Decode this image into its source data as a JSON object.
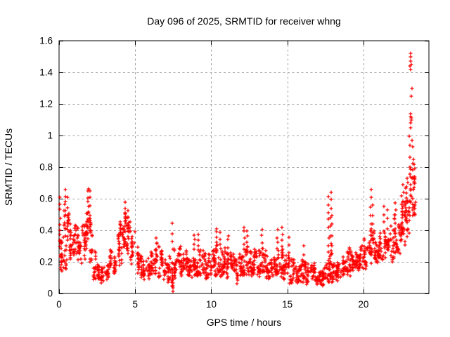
{
  "chart_data": {
    "type": "scatter",
    "title": "Day 096 of 2025, SRMTID for receiver whng",
    "xlabel": "GPS time / hours",
    "ylabel": "SRMTID / TECUs",
    "xlim": [
      0,
      24.3
    ],
    "ylim": [
      0,
      1.6
    ],
    "xticks": [
      0,
      5,
      10,
      15,
      20
    ],
    "yticks": [
      0,
      0.2,
      0.4,
      0.6,
      0.8,
      1,
      1.2,
      1.4,
      1.6
    ],
    "ytick_labels": [
      "0",
      "0.2",
      "0.4",
      "0.6",
      "0.8",
      "1",
      "1.2",
      "1.4",
      "1.6"
    ],
    "grid": true,
    "legend": "none",
    "marker": "plus",
    "marker_color": "#ff0000",
    "grid_color": "#a0a0a0",
    "series_name": "SRMTID",
    "bin_width": 0.25,
    "band_bins": [
      [
        0.0,
        0.08,
        0.48,
        22
      ],
      [
        0.25,
        0.15,
        0.58,
        22
      ],
      [
        0.5,
        0.2,
        0.6,
        22
      ],
      [
        0.75,
        0.22,
        0.5,
        20
      ],
      [
        1.0,
        0.25,
        0.45,
        20
      ],
      [
        1.25,
        0.15,
        0.38,
        20
      ],
      [
        1.5,
        0.18,
        0.45,
        20
      ],
      [
        1.75,
        0.22,
        0.58,
        22
      ],
      [
        2.0,
        0.18,
        0.55,
        20
      ],
      [
        2.25,
        0.08,
        0.28,
        20
      ],
      [
        2.5,
        0.05,
        0.2,
        20
      ],
      [
        2.75,
        0.05,
        0.18,
        20
      ],
      [
        3.0,
        0.07,
        0.2,
        20
      ],
      [
        3.25,
        0.1,
        0.28,
        20
      ],
      [
        3.5,
        0.12,
        0.32,
        20
      ],
      [
        3.75,
        0.15,
        0.38,
        20
      ],
      [
        4.0,
        0.18,
        0.48,
        22
      ],
      [
        4.25,
        0.25,
        0.55,
        24
      ],
      [
        4.5,
        0.2,
        0.5,
        22
      ],
      [
        4.75,
        0.15,
        0.4,
        20
      ],
      [
        5.0,
        0.12,
        0.3,
        20
      ],
      [
        5.25,
        0.1,
        0.25,
        20
      ],
      [
        5.5,
        0.07,
        0.22,
        20
      ],
      [
        5.75,
        0.08,
        0.24,
        20
      ],
      [
        6.0,
        0.1,
        0.28,
        20
      ],
      [
        6.25,
        0.12,
        0.32,
        20
      ],
      [
        6.5,
        0.1,
        0.3,
        20
      ],
      [
        6.75,
        0.08,
        0.25,
        20
      ],
      [
        7.0,
        0.05,
        0.22,
        20
      ],
      [
        7.25,
        0.03,
        0.25,
        20
      ],
      [
        7.5,
        0.05,
        0.28,
        20
      ],
      [
        7.75,
        0.1,
        0.3,
        20
      ],
      [
        8.0,
        0.1,
        0.3,
        20
      ],
      [
        8.25,
        0.1,
        0.28,
        20
      ],
      [
        8.5,
        0.08,
        0.26,
        20
      ],
      [
        8.75,
        0.1,
        0.3,
        20
      ],
      [
        9.0,
        0.1,
        0.3,
        20
      ],
      [
        9.25,
        0.1,
        0.28,
        20
      ],
      [
        9.5,
        0.08,
        0.26,
        20
      ],
      [
        9.75,
        0.08,
        0.25,
        20
      ],
      [
        10.0,
        0.1,
        0.28,
        20
      ],
      [
        10.25,
        0.1,
        0.32,
        20
      ],
      [
        10.5,
        0.1,
        0.3,
        20
      ],
      [
        10.75,
        0.1,
        0.3,
        20
      ],
      [
        11.0,
        0.08,
        0.28,
        20
      ],
      [
        11.25,
        0.08,
        0.26,
        20
      ],
      [
        11.5,
        0.06,
        0.22,
        20
      ],
      [
        11.75,
        0.08,
        0.25,
        20
      ],
      [
        12.0,
        0.1,
        0.3,
        20
      ],
      [
        12.25,
        0.1,
        0.3,
        20
      ],
      [
        12.5,
        0.08,
        0.28,
        20
      ],
      [
        12.75,
        0.1,
        0.32,
        20
      ],
      [
        13.0,
        0.1,
        0.3,
        20
      ],
      [
        13.25,
        0.1,
        0.3,
        20
      ],
      [
        13.5,
        0.08,
        0.28,
        20
      ],
      [
        13.75,
        0.08,
        0.26,
        20
      ],
      [
        14.0,
        0.08,
        0.28,
        20
      ],
      [
        14.25,
        0.1,
        0.3,
        20
      ],
      [
        14.5,
        0.08,
        0.28,
        20
      ],
      [
        14.75,
        0.08,
        0.25,
        20
      ],
      [
        15.0,
        0.06,
        0.25,
        20
      ],
      [
        15.25,
        0.06,
        0.22,
        20
      ],
      [
        15.5,
        0.05,
        0.2,
        20
      ],
      [
        15.75,
        0.06,
        0.22,
        20
      ],
      [
        16.0,
        0.05,
        0.2,
        20
      ],
      [
        16.25,
        0.05,
        0.2,
        20
      ],
      [
        16.5,
        0.04,
        0.18,
        20
      ],
      [
        16.75,
        0.05,
        0.2,
        20
      ],
      [
        17.0,
        0.04,
        0.18,
        20
      ],
      [
        17.25,
        0.04,
        0.16,
        20
      ],
      [
        17.5,
        0.05,
        0.25,
        20
      ],
      [
        17.75,
        0.06,
        0.3,
        20
      ],
      [
        18.0,
        0.05,
        0.25,
        20
      ],
      [
        18.25,
        0.06,
        0.22,
        20
      ],
      [
        18.5,
        0.08,
        0.25,
        20
      ],
      [
        18.75,
        0.1,
        0.28,
        20
      ],
      [
        19.0,
        0.1,
        0.3,
        20
      ],
      [
        19.25,
        0.12,
        0.3,
        20
      ],
      [
        19.5,
        0.12,
        0.3,
        20
      ],
      [
        19.75,
        0.15,
        0.32,
        20
      ],
      [
        20.0,
        0.15,
        0.35,
        20
      ],
      [
        20.25,
        0.18,
        0.4,
        20
      ],
      [
        20.5,
        0.2,
        0.42,
        22
      ],
      [
        20.75,
        0.18,
        0.38,
        20
      ],
      [
        21.0,
        0.2,
        0.4,
        20
      ],
      [
        21.25,
        0.2,
        0.42,
        20
      ],
      [
        21.5,
        0.22,
        0.45,
        20
      ],
      [
        21.75,
        0.18,
        0.45,
        20
      ],
      [
        22.0,
        0.25,
        0.5,
        22
      ],
      [
        22.25,
        0.25,
        0.55,
        22
      ],
      [
        22.5,
        0.3,
        0.62,
        24
      ],
      [
        22.75,
        0.3,
        0.72,
        26
      ],
      [
        23.0,
        0.4,
        0.88,
        26
      ],
      [
        23.25,
        0.45,
        0.85,
        16
      ]
    ],
    "spikes": [
      [
        0.05,
        0.3,
        0.62,
        8
      ],
      [
        0.4,
        0.45,
        0.66,
        6
      ],
      [
        0.55,
        0.4,
        0.6,
        5
      ],
      [
        1.9,
        0.45,
        0.67,
        8
      ],
      [
        2.05,
        0.4,
        0.65,
        6
      ],
      [
        4.35,
        0.45,
        0.57,
        5
      ],
      [
        4.55,
        0.4,
        0.52,
        4
      ],
      [
        6.4,
        0.28,
        0.35,
        3
      ],
      [
        7.45,
        0.28,
        0.44,
        4
      ],
      [
        7.5,
        0.02,
        0.09,
        5
      ],
      [
        8.9,
        0.28,
        0.37,
        4
      ],
      [
        9.15,
        0.28,
        0.38,
        4
      ],
      [
        10.35,
        0.3,
        0.42,
        5
      ],
      [
        10.6,
        0.28,
        0.38,
        4
      ],
      [
        11.1,
        0.26,
        0.37,
        4
      ],
      [
        12.15,
        0.28,
        0.42,
        5
      ],
      [
        12.35,
        0.28,
        0.4,
        4
      ],
      [
        13.35,
        0.28,
        0.4,
        4
      ],
      [
        14.35,
        0.28,
        0.4,
        4
      ],
      [
        14.65,
        0.26,
        0.42,
        5
      ],
      [
        15.1,
        0.22,
        0.35,
        4
      ],
      [
        16.1,
        0.2,
        0.3,
        3
      ],
      [
        17.7,
        0.2,
        0.62,
        9
      ],
      [
        17.85,
        0.2,
        0.64,
        9
      ],
      [
        17.95,
        0.18,
        0.5,
        6
      ],
      [
        20.5,
        0.4,
        0.65,
        6
      ],
      [
        20.6,
        0.38,
        0.55,
        4
      ],
      [
        21.35,
        0.4,
        0.55,
        4
      ],
      [
        21.6,
        0.42,
        0.52,
        3
      ],
      [
        22.1,
        0.45,
        0.58,
        4
      ],
      [
        22.6,
        0.5,
        0.68,
        5
      ],
      [
        22.85,
        0.6,
        0.72,
        4
      ],
      [
        23.05,
        0.8,
        1.0,
        4
      ]
    ],
    "outliers": [
      [
        23.08,
        1.52
      ],
      [
        23.12,
        1.5
      ],
      [
        23.1,
        1.47
      ],
      [
        23.15,
        1.45
      ],
      [
        23.05,
        1.44
      ],
      [
        23.12,
        1.42
      ],
      [
        23.18,
        1.3
      ],
      [
        23.15,
        1.25
      ],
      [
        23.08,
        1.14
      ],
      [
        23.14,
        1.11
      ],
      [
        23.12,
        1.12
      ],
      [
        23.16,
        1.1
      ],
      [
        23.1,
        1.08
      ],
      [
        23.1,
        1.05
      ],
      [
        23.2,
        0.97
      ],
      [
        23.22,
        0.93
      ],
      [
        23.3,
        0.85
      ],
      [
        23.35,
        0.82
      ],
      [
        23.38,
        0.79
      ],
      [
        23.3,
        0.66
      ],
      [
        23.35,
        0.55
      ]
    ]
  }
}
